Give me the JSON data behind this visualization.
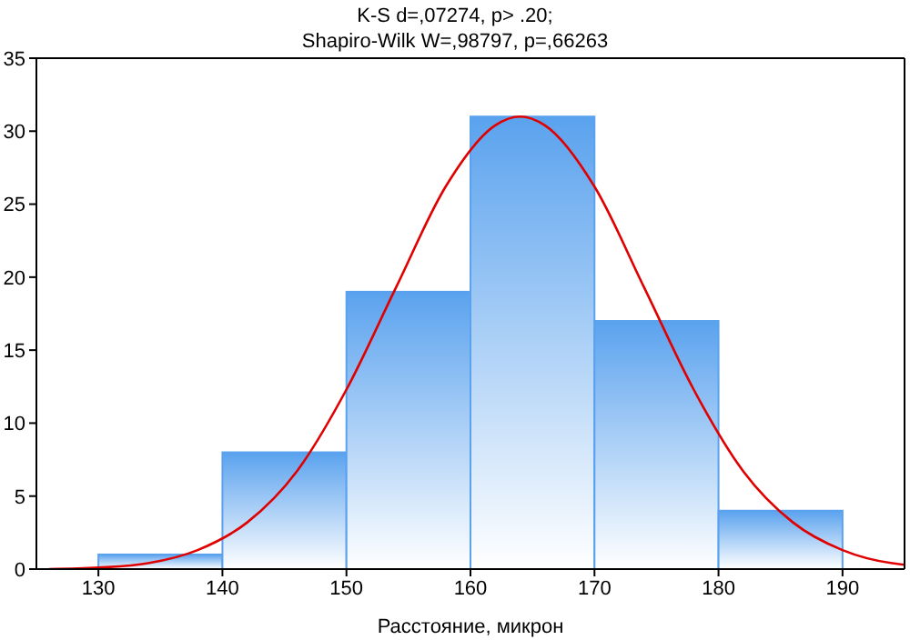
{
  "chart_data": {
    "type": "histogram",
    "title": "K-S d=,07274, p> .20;",
    "subtitle": "Shapiro-Wilk W=,98797, p=,66263",
    "xlabel": "Расстояние, микрон",
    "bins": [
      130,
      140,
      150,
      160,
      170,
      180,
      190
    ],
    "values": [
      1,
      8,
      19,
      31,
      17,
      4
    ],
    "color": "#5aa2ee",
    "series": [
      {
        "type": "line",
        "color": "#e00000",
        "x": [
          126,
          130,
          134,
          138,
          142,
          146,
          150,
          154,
          158,
          162,
          164,
          166,
          170,
          174,
          178,
          182,
          186,
          190,
          194,
          195
        ],
        "values": [
          0,
          0.1,
          0.4,
          1.3,
          3.2,
          6.7,
          12.3,
          19.3,
          26.2,
          30.4,
          31,
          30.4,
          26.2,
          19.3,
          12.3,
          6.7,
          3.2,
          1.3,
          0.4,
          0.3
        ]
      }
    ],
    "xlim": [
      125,
      195
    ],
    "xticks": [
      130,
      140,
      150,
      160,
      170,
      180,
      190
    ],
    "ylim": [
      0,
      35
    ],
    "yticks": [
      0,
      5,
      10,
      15,
      20,
      25,
      30,
      35
    ],
    "grid": false,
    "legend": false
  }
}
